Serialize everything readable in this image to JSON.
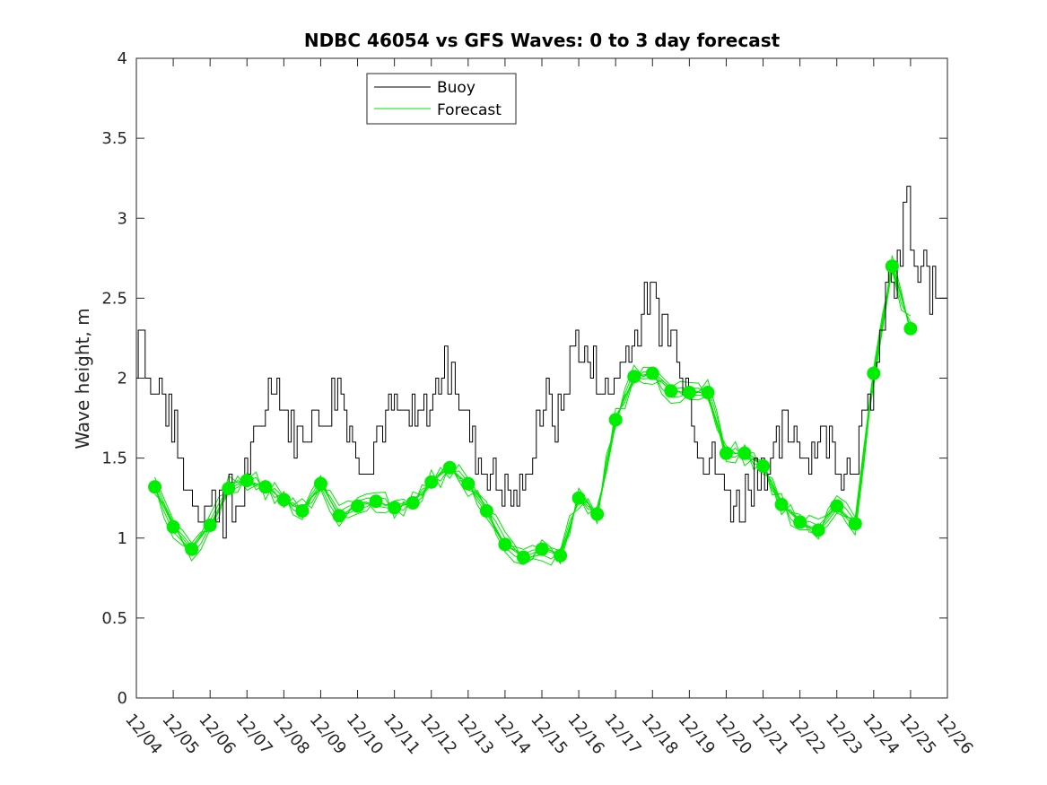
{
  "chart_data": {
    "type": "line",
    "title": "NDBC 46054 vs GFS Waves: 0 to 3 day forecast",
    "xlabel": "",
    "ylabel": "Wave height, m",
    "xlim": [
      0,
      22
    ],
    "ylim": [
      0,
      4
    ],
    "x_tick_labels": [
      "12/04",
      "12/05",
      "12/06",
      "12/07",
      "12/08",
      "12/09",
      "12/10",
      "12/11",
      "12/12",
      "12/13",
      "12/14",
      "12/15",
      "12/16",
      "12/17",
      "12/18",
      "12/19",
      "12/20",
      "12/21",
      "12/22",
      "12/23",
      "12/24",
      "12/25",
      "12/26"
    ],
    "y_ticks": [
      0,
      0.5,
      1,
      1.5,
      2,
      2.5,
      3,
      3.5,
      4
    ],
    "y_tick_labels": [
      "0",
      "0.5",
      "1",
      "1.5",
      "2",
      "2.5",
      "3",
      "3.5",
      "4"
    ],
    "legend": {
      "location": "top-center-left",
      "entries": [
        "Buoy",
        "Forecast"
      ]
    },
    "colors": {
      "buoy": "#000000",
      "forecast": "#00e600",
      "markers": "#00ee00",
      "axes": "#262626"
    },
    "series": [
      {
        "name": "Buoy",
        "x": [
          0,
          0.1,
          0.2,
          0.35,
          0.5,
          0.7,
          0.8,
          1.0,
          1.2,
          1.4,
          1.6,
          1.8,
          1.9,
          2.0,
          2.1,
          2.2,
          2.3,
          2.4,
          2.55,
          2.65,
          2.75,
          2.9,
          3.1,
          3.3,
          3.5,
          3.7,
          3.85,
          4.0,
          4.2,
          4.4,
          4.6,
          4.8,
          4.9,
          5.0,
          5.2,
          5.3,
          5.5,
          5.6,
          5.75,
          5.9,
          6.0,
          6.2,
          6.4,
          6.6,
          6.8,
          7.0,
          7.2,
          7.4,
          7.6,
          7.8,
          8.0,
          8.2,
          8.4,
          8.5,
          8.6,
          8.7,
          8.8,
          8.9,
          9.0,
          9.2,
          9.4,
          9.6,
          9.8,
          10.0,
          10.2,
          10.4,
          10.6,
          10.7,
          10.8,
          10.9,
          11.0,
          11.2,
          11.4,
          11.6,
          11.8,
          12.0,
          12.2,
          12.4,
          12.6,
          12.8,
          13.0,
          13.2,
          13.4,
          13.6,
          13.7,
          13.9,
          14.1,
          14.3,
          14.5,
          14.7,
          14.9,
          15.1,
          15.3,
          15.5,
          15.7,
          15.9,
          16.0,
          16.2,
          16.4,
          16.6,
          16.8,
          16.9,
          17.0,
          17.2,
          17.4,
          17.6,
          17.8,
          18.0,
          18.2,
          18.4,
          18.6,
          18.8,
          19.0,
          19.2,
          19.4,
          19.6,
          19.8,
          20.0,
          20.2,
          20.4,
          20.6,
          20.8,
          20.9,
          21.0,
          21.1,
          21.2,
          21.4,
          21.6,
          21.8,
          22.0
        ],
        "y": [
          2.05,
          2.45,
          2.3,
          2.0,
          1.9,
          2.0,
          1.8,
          1.75,
          1.5,
          1.35,
          1.3,
          1.2,
          1.25,
          1.15,
          1.2,
          1.25,
          1.3,
          1.15,
          1.25,
          1.1,
          1.2,
          1.3,
          1.5,
          1.6,
          1.85,
          2.0,
          2.0,
          1.8,
          1.75,
          1.65,
          1.7,
          1.8,
          1.65,
          1.75,
          1.8,
          1.85,
          1.95,
          1.9,
          1.75,
          1.6,
          1.45,
          1.55,
          1.5,
          1.7,
          1.8,
          1.85,
          1.75,
          1.75,
          1.7,
          1.8,
          1.85,
          1.95,
          2.1,
          2.05,
          2.2,
          2.0,
          1.9,
          1.75,
          1.7,
          1.6,
          1.45,
          1.4,
          1.35,
          1.3,
          1.2,
          1.3,
          1.35,
          1.5,
          1.6,
          1.75,
          1.8,
          1.85,
          1.75,
          1.85,
          2.1,
          2.3,
          2.1,
          2.05,
          2.0,
          1.9,
          2.0,
          2.1,
          2.2,
          2.3,
          2.4,
          2.5,
          2.45,
          2.35,
          2.3,
          2.2,
          2.05,
          1.8,
          1.6,
          1.5,
          1.45,
          1.35,
          1.3,
          1.25,
          1.2,
          1.3,
          1.4,
          1.45,
          1.5,
          1.45,
          1.55,
          1.65,
          1.7,
          1.6,
          1.5,
          1.6,
          1.65,
          1.6,
          1.5,
          1.45,
          1.5,
          1.6,
          1.7,
          2.0,
          2.2,
          2.6,
          2.6,
          2.8,
          3.25,
          3.0,
          2.7,
          2.6,
          2.65,
          2.55,
          2.55,
          2.55
        ]
      },
      {
        "name": "Forecast",
        "x": [
          0.5,
          1.0,
          1.5,
          2.0,
          2.5,
          3.0,
          3.5,
          4.0,
          4.5,
          5.0,
          5.5,
          6.0,
          6.5,
          7.0,
          7.5,
          8.0,
          8.5,
          9.0,
          9.5,
          10.0,
          10.5,
          11.0,
          11.5,
          12.0,
          12.5,
          13.0,
          13.5,
          14.0,
          14.5,
          15.0,
          15.5,
          16.0,
          16.5,
          17.0,
          17.5,
          18.0,
          18.5,
          19.0,
          19.5,
          20.0,
          20.5,
          21.0
        ],
        "y": [
          1.32,
          1.07,
          0.93,
          1.08,
          1.31,
          1.36,
          1.32,
          1.24,
          1.17,
          1.34,
          1.14,
          1.2,
          1.23,
          1.19,
          1.22,
          1.35,
          1.44,
          1.34,
          1.17,
          0.96,
          0.88,
          0.93,
          0.89,
          1.25,
          1.15,
          1.74,
          2.01,
          2.03,
          1.92,
          1.91,
          1.91,
          1.53,
          1.53,
          1.45,
          1.21,
          1.1,
          1.05,
          1.2,
          1.09,
          2.03,
          2.7,
          2.31
        ]
      }
    ]
  }
}
